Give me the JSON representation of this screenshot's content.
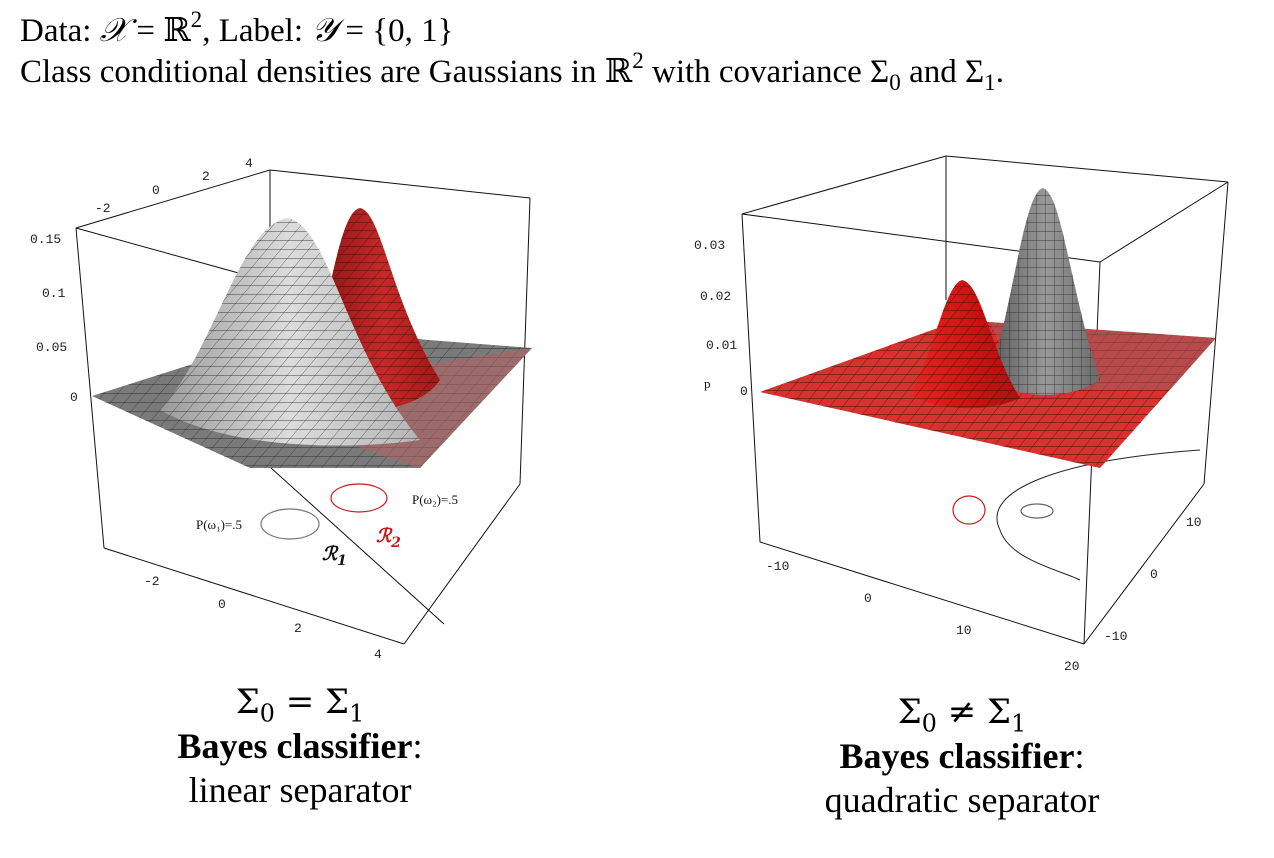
{
  "header": {
    "line1_a": "Data: ",
    "line1_X": "𝒳",
    "line1_b": " = ",
    "line1_R": "ℝ",
    "line1_sup": "2",
    "line1_c": ", Label: ",
    "line1_Y": "𝒴",
    "line1_d": " = {0, 1}",
    "line2_a": "Class conditional densities are Gaussians in ",
    "line2_R": "ℝ",
    "line2_sup": "2",
    "line2_b": " with covariance Σ",
    "line2_sub0": "0",
    "line2_c": " and Σ",
    "line2_sub1": "1",
    "line2_d": "."
  },
  "left_plot": {
    "z_ticks": [
      "0.15",
      "0.1",
      "0.05",
      "0"
    ],
    "top_ticks": [
      "-2",
      "0",
      "2",
      "4"
    ],
    "bottom_ticks": [
      "-2",
      "0",
      "2",
      "4"
    ],
    "prior1": "P(ω₁)=.5",
    "prior2": "P(ω₂)=.5",
    "region1": "ℛ",
    "region1_sub": "1",
    "region2": "ℛ",
    "region2_sub": "2",
    "surface_colors": {
      "class1": "#c8c8c8",
      "class2": "#b02020",
      "base": "#777777"
    }
  },
  "right_plot": {
    "z_ticks": [
      "0.03",
      "0.02",
      "0.01",
      "0"
    ],
    "z_label": "p",
    "x_ticks": [
      "-10",
      "0",
      "10",
      "20"
    ],
    "y_ticks": [
      "10",
      "0",
      "-10"
    ],
    "surface_colors": {
      "class1": "#dd2020",
      "class2": "#808080",
      "base": "#d42a2a"
    }
  },
  "captions": {
    "left_eq_a": "Σ",
    "left_eq_sub0": "0",
    "left_eq_op": " = ",
    "left_eq_b": "Σ",
    "left_eq_sub1": "1",
    "left_bold": "Bayes classifier",
    "left_colon": ":",
    "left_line3": "linear separator",
    "right_eq_a": "Σ",
    "right_eq_sub0": "0",
    "right_eq_op": " ≠ ",
    "right_eq_b": "Σ",
    "right_eq_sub1": "1",
    "right_bold": "Bayes classifier",
    "right_colon": ":",
    "right_line3": "quadratic separator"
  }
}
